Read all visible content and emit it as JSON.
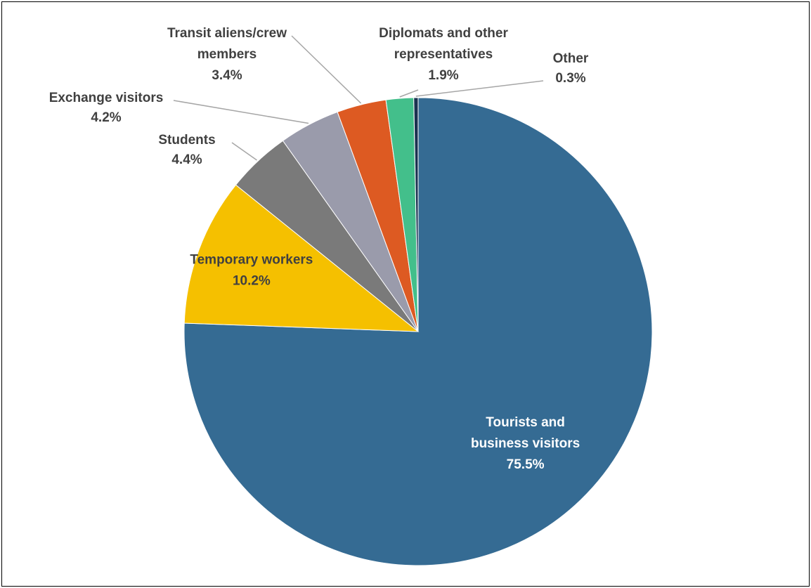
{
  "chart_data": {
    "type": "pie",
    "title": "",
    "start": "top",
    "direction": "clockwise",
    "legend": "none",
    "slices": [
      {
        "name": "Tourists and business visitors",
        "lines": [
          "Tourists and",
          "business visitors",
          "75.5%"
        ],
        "value": 75.5,
        "color": "#356b93",
        "text_color": "#ffffff"
      },
      {
        "name": "Temporary workers",
        "lines": [
          "Temporary workers",
          "10.2%"
        ],
        "value": 10.2,
        "color": "#f5c000",
        "text_color": "#404040"
      },
      {
        "name": "Students",
        "lines": [
          "Students",
          "4.4%"
        ],
        "value": 4.4,
        "color": "#7a7a7a",
        "text_color": "#404040"
      },
      {
        "name": "Exchange visitors",
        "lines": [
          "Exchange visitors",
          "4.2%"
        ],
        "value": 4.2,
        "color": "#9a9bab",
        "text_color": "#404040"
      },
      {
        "name": "Transit aliens/crew members",
        "lines": [
          "Transit aliens/crew",
          "members",
          "3.4%"
        ],
        "value": 3.4,
        "color": "#dd5a22",
        "text_color": "#404040"
      },
      {
        "name": "Diplomats and other representatives",
        "lines": [
          "Diplomats and other",
          "representatives",
          "1.9%"
        ],
        "value": 1.9,
        "color": "#43bf8b",
        "text_color": "#404040"
      },
      {
        "name": "Other",
        "lines": [
          "Other",
          "0.3%"
        ],
        "value": 0.3,
        "color": "#1a3150",
        "text_color": "#404040"
      }
    ]
  }
}
